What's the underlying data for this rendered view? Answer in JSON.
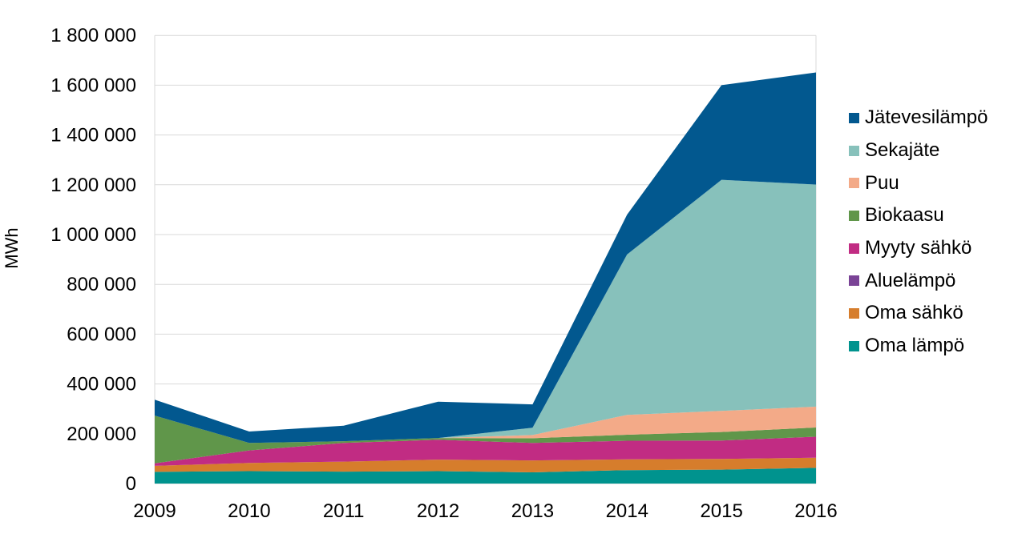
{
  "chart_data": {
    "type": "area",
    "stacked": true,
    "title": "",
    "xlabel": "",
    "ylabel": "MWh",
    "categories": [
      "2009",
      "2010",
      "2011",
      "2012",
      "2013",
      "2014",
      "2015",
      "2016"
    ],
    "ylim": [
      0,
      1800000
    ],
    "ytick_step": 200000,
    "ytick_labels": [
      "0",
      "200 000",
      "400 000",
      "600 000",
      "800 000",
      "1 000 000",
      "1 200 000",
      "1 400 000",
      "1 600 000",
      "1 800 000"
    ],
    "grid": "horizontal",
    "legend_position": "right",
    "series": [
      {
        "name": "Oma lämpö",
        "color": "#00938e",
        "values": [
          47000,
          50000,
          48000,
          50000,
          45000,
          54000,
          56000,
          63000
        ]
      },
      {
        "name": "Oma sähkö",
        "color": "#d67d2c",
        "values": [
          24000,
          33000,
          40000,
          46000,
          48000,
          43000,
          43000,
          41000
        ]
      },
      {
        "name": "Aluelämpö",
        "color": "#7a4396",
        "values": [
          0,
          0,
          0,
          0,
          0,
          0,
          0,
          0
        ]
      },
      {
        "name": "Myyty sähkö",
        "color": "#c12c83",
        "values": [
          10000,
          50000,
          75000,
          80000,
          70000,
          75000,
          74000,
          84000
        ]
      },
      {
        "name": "Biokaasu",
        "color": "#60964a",
        "values": [
          192000,
          30000,
          7000,
          7000,
          19000,
          24000,
          34000,
          37000
        ]
      },
      {
        "name": "Puu",
        "color": "#f3aa88",
        "values": [
          0,
          0,
          0,
          0,
          13000,
          80000,
          85000,
          84000
        ]
      },
      {
        "name": "Sekajäte",
        "color": "#87c1bb",
        "values": [
          0,
          0,
          0,
          0,
          29000,
          644000,
          928000,
          892000
        ]
      },
      {
        "name": "Jätevesilämpö",
        "color": "#02588f",
        "values": [
          64000,
          46000,
          62000,
          146000,
          94000,
          160000,
          380000,
          450000
        ]
      }
    ],
    "legend": [
      {
        "label": "Jätevesilämpö",
        "color": "#02588f"
      },
      {
        "label": "Sekajäte",
        "color": "#87c1bb"
      },
      {
        "label": "Puu",
        "color": "#f3aa88"
      },
      {
        "label": "Biokaasu",
        "color": "#60964a"
      },
      {
        "label": "Myyty sähkö",
        "color": "#c12c83"
      },
      {
        "label": "Aluelämpö",
        "color": "#7a4396"
      },
      {
        "label": "Oma sähkö",
        "color": "#d67d2c"
      },
      {
        "label": "Oma lämpö",
        "color": "#00938e"
      }
    ]
  },
  "colors": {
    "grid": "#d9d9d9",
    "text": "#000000",
    "background": "#ffffff"
  }
}
